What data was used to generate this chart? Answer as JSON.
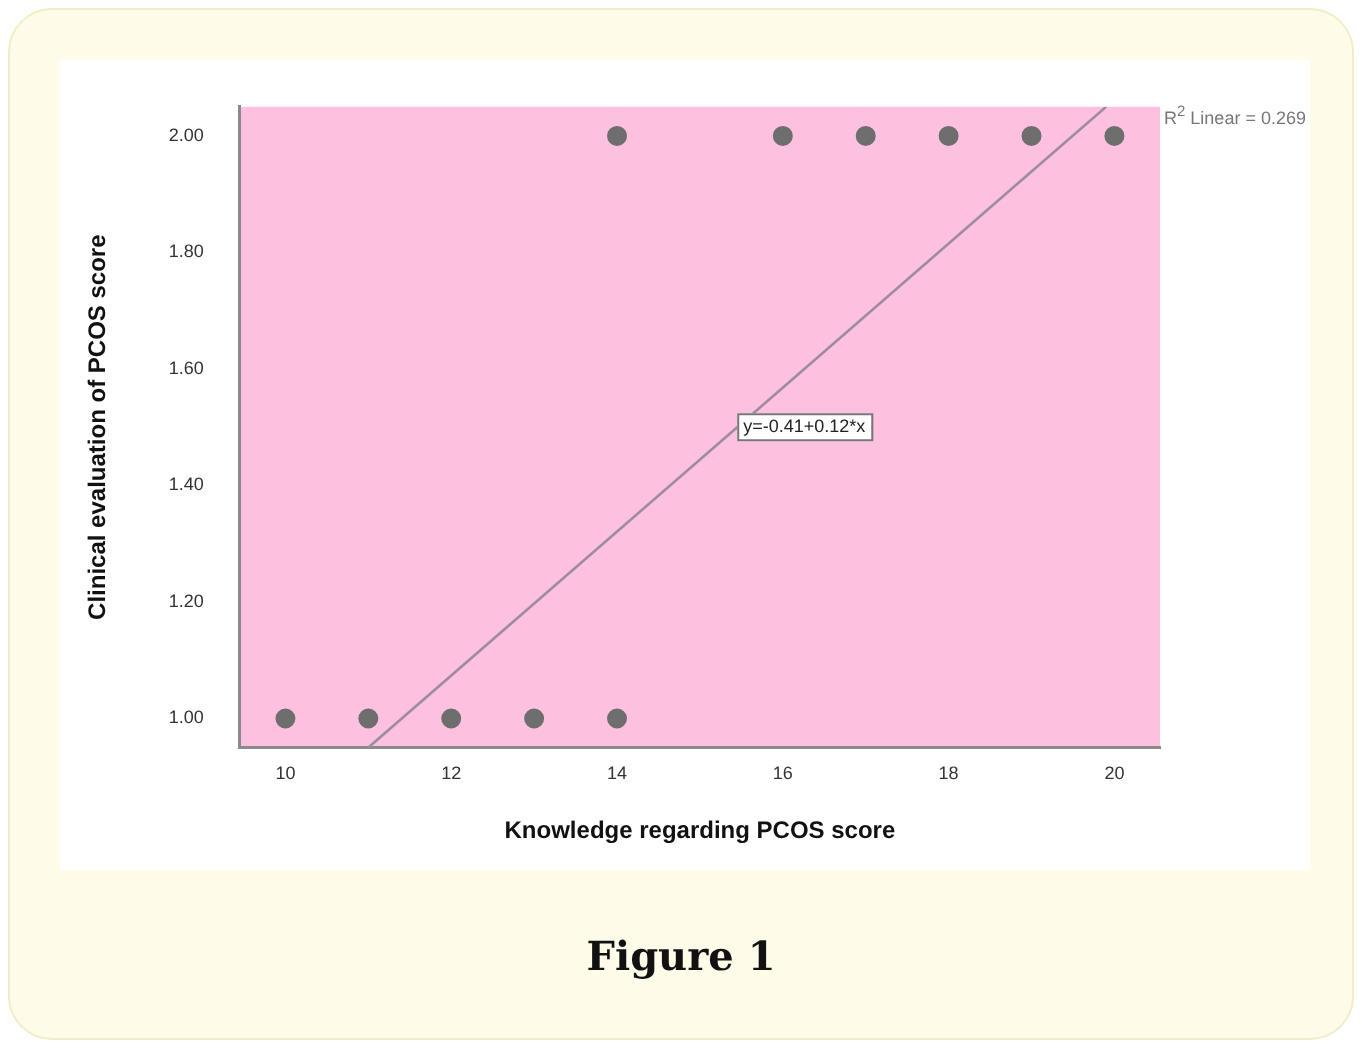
{
  "chart_data": {
    "type": "scatter",
    "xlabel": "Knowledge regarding PCOS score",
    "ylabel": "Clinical evaluation of PCOS score",
    "series": [
      {
        "color": "#6e6e6e",
        "marker": "circle",
        "x": [
          10,
          11,
          12,
          13,
          14,
          14,
          16,
          17,
          18,
          19,
          20
        ],
        "values": [
          1,
          1,
          1,
          1,
          1,
          2,
          2,
          2,
          2,
          2,
          2
        ]
      },
      {
        "type": "line",
        "color": "#9e8c9e",
        "x": [
          11.0,
          19.9
        ],
        "values": [
          0.95,
          2.05
        ]
      }
    ],
    "xlim": [
      9.45,
      20.55
    ],
    "ylim": [
      0.95,
      2.05
    ],
    "xticks": [
      10,
      12,
      14,
      16,
      18,
      20
    ],
    "yticks": [
      {
        "value": 1,
        "label": "1.00"
      },
      {
        "value": 1.2,
        "label": "1.20"
      },
      {
        "value": 1.4,
        "label": "1.40"
      },
      {
        "value": 1.6,
        "label": "1.60"
      },
      {
        "value": 1.8,
        "label": "1.80"
      },
      {
        "value": 2,
        "label": "2.00"
      }
    ],
    "annotations": [
      "y=-0.41+0.12*x",
      "R$^{2}$ Linear = 0.269",
      "Figure 1"
    ],
    "grid": false,
    "legend": false,
    "line_style": "solid"
  }
}
